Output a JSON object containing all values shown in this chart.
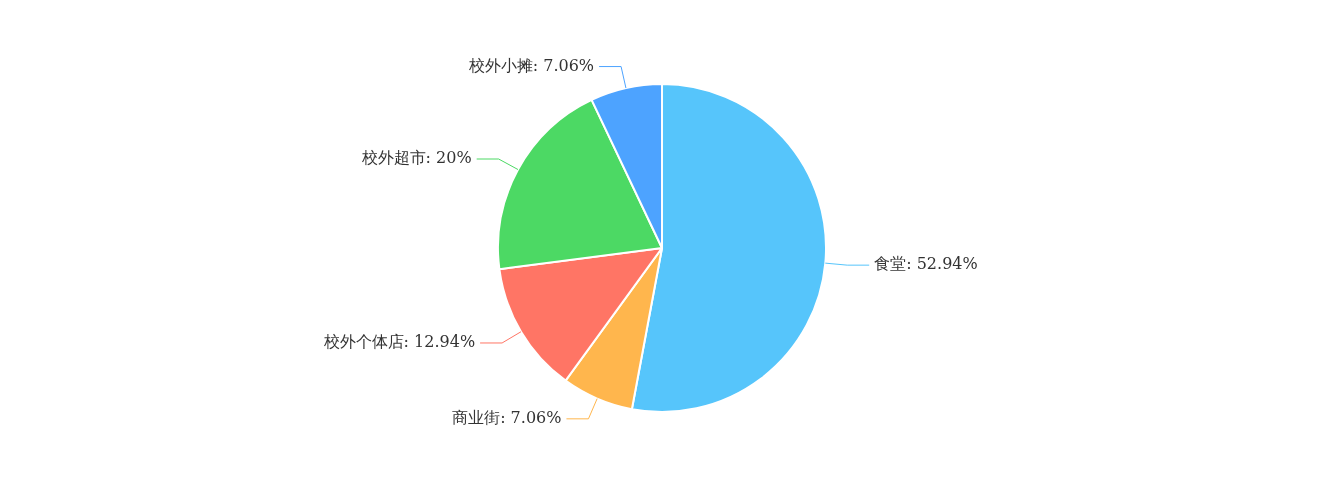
{
  "chart_data": {
    "type": "pie",
    "categories": [
      "食堂",
      "商业街",
      "校外个体店",
      "校外超市",
      "校外小摊"
    ],
    "values": [
      52.94,
      7.06,
      12.94,
      20,
      7.06
    ],
    "value_labels": [
      "52.94%",
      "7.06%",
      "12.94%",
      "20%",
      "7.06%"
    ],
    "colors": [
      "#56c5fb",
      "#ffb64d",
      "#ff7565",
      "#4cd964",
      "#4da3ff"
    ],
    "legend": false
  }
}
